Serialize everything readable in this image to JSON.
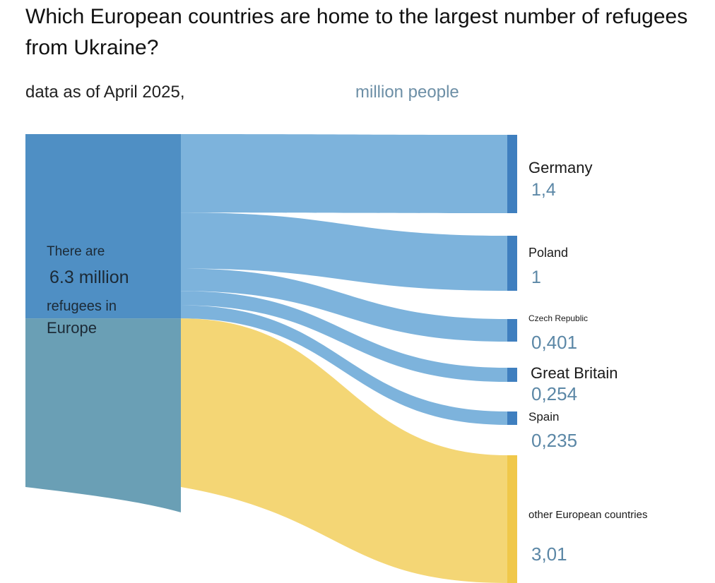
{
  "title": "Which European countries are home to the largest number of refugees from Ukraine?",
  "subtitle": "data as of April 2025,",
  "unit": "million people",
  "source_label": {
    "line1": "There are",
    "line2": "6.3 million",
    "line3": "refugees in",
    "line4": "Europe"
  },
  "colors": {
    "source_top": "#4f8fc4",
    "source_bottom": "#6a9fb5",
    "flow_blue": "#7db3dc",
    "flow_other": "#f4d675",
    "bar_blue": "#3f7fbf",
    "bar_other": "#f0c84a"
  },
  "chart_data": {
    "type": "sankey",
    "source": {
      "name": "There are 6.3 million refugees in Europe",
      "value": 6.3
    },
    "flows": [
      {
        "target": "Germany",
        "value": 1.4,
        "label": "1,4"
      },
      {
        "target": "Poland",
        "value": 1.0,
        "label": "1"
      },
      {
        "target": "Czech Republic",
        "value": 0.401,
        "label": "0,401"
      },
      {
        "target": "Great Britain",
        "value": 0.254,
        "label": "0,254"
      },
      {
        "target": "Spain",
        "value": 0.235,
        "label": "0,235"
      },
      {
        "target": "other European countries",
        "value": 3.01,
        "label": "3,01"
      }
    ]
  }
}
